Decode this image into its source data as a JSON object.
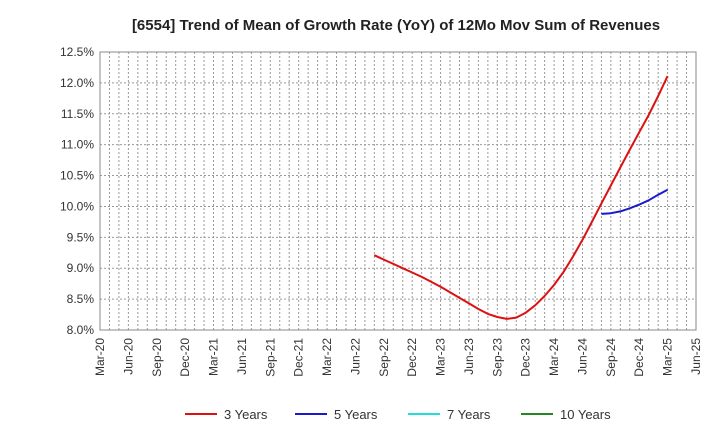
{
  "chart_data": {
    "type": "line",
    "title": "[6554]  Trend of Mean of Growth Rate (YoY) of 12Mo Mov Sum of Revenues",
    "xlabel": "",
    "ylabel": "",
    "ylim": [
      8.0,
      12.5
    ],
    "yticks": [
      8.0,
      8.5,
      9.0,
      9.5,
      10.0,
      10.5,
      11.0,
      11.5,
      12.0,
      12.5
    ],
    "ytick_labels": [
      "8.0%",
      "8.5%",
      "9.0%",
      "9.5%",
      "10.0%",
      "10.5%",
      "11.0%",
      "11.5%",
      "12.0%",
      "12.5%"
    ],
    "x_categories": [
      "Mar-20",
      "Jun-20",
      "Sep-20",
      "Dec-20",
      "Mar-21",
      "Jun-21",
      "Sep-21",
      "Dec-21",
      "Mar-22",
      "Jun-22",
      "Sep-22",
      "Dec-22",
      "Mar-23",
      "Jun-23",
      "Sep-23",
      "Dec-23",
      "Mar-24",
      "Jun-24",
      "Sep-24",
      "Dec-24",
      "Mar-25",
      "Jun-25"
    ],
    "grid": true,
    "legend_position": "bottom-center",
    "series": [
      {
        "name": "3 Years",
        "color": "#dd1111",
        "x": [
          "Aug-22",
          "Sep-22",
          "Oct-22",
          "Nov-22",
          "Dec-22",
          "Jan-23",
          "Feb-23",
          "Mar-23",
          "Apr-23",
          "May-23",
          "Jun-23",
          "Jul-23",
          "Aug-23",
          "Sep-23",
          "Oct-23",
          "Nov-23",
          "Dec-23",
          "Jan-24",
          "Feb-24",
          "Mar-24",
          "Apr-24",
          "May-24",
          "Jun-24",
          "Jul-24",
          "Aug-24",
          "Sep-24",
          "Oct-24",
          "Nov-24",
          "Dec-24",
          "Jan-25",
          "Feb-25",
          "Mar-25"
        ],
        "values": [
          9.21,
          9.14,
          9.07,
          9.0,
          8.93,
          8.86,
          8.78,
          8.7,
          8.61,
          8.52,
          8.43,
          8.34,
          8.26,
          8.21,
          8.18,
          8.2,
          8.28,
          8.4,
          8.55,
          8.73,
          8.94,
          9.19,
          9.46,
          9.75,
          10.05,
          10.34,
          10.63,
          10.92,
          11.2,
          11.48,
          11.79,
          12.11
        ]
      },
      {
        "name": "5 Years",
        "color": "#1a1acc",
        "x": [
          "Aug-24",
          "Sep-24",
          "Oct-24",
          "Nov-24",
          "Dec-24",
          "Jan-25",
          "Feb-25",
          "Mar-25"
        ],
        "values": [
          9.88,
          9.89,
          9.92,
          9.97,
          10.03,
          10.1,
          10.19,
          10.27
        ]
      },
      {
        "name": "7 Years",
        "color": "#22dddd",
        "x": [],
        "values": []
      },
      {
        "name": "10 Years",
        "color": "#228822",
        "x": [],
        "values": []
      }
    ]
  }
}
